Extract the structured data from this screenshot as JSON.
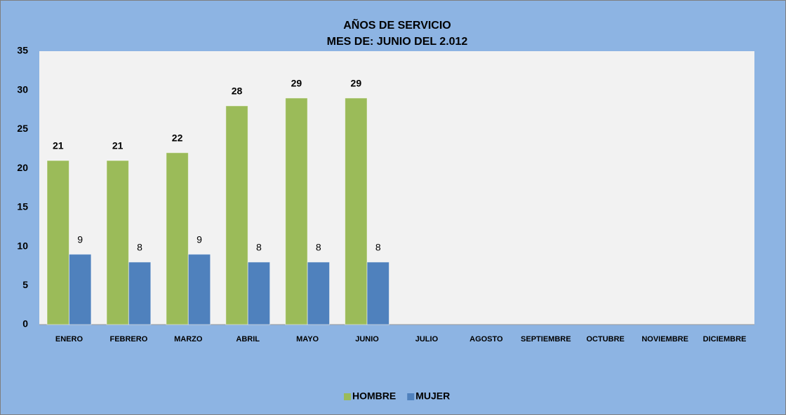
{
  "chart_data": {
    "type": "bar",
    "title": "AÑOS DE SERVICIO",
    "subtitle": "MES DE: JUNIO DEL 2.012",
    "categories": [
      "ENERO",
      "FEBRERO",
      "MARZO",
      "ABRIL",
      "MAYO",
      "JUNIO",
      "JULIO",
      "AGOSTO",
      "SEPTIEMBRE",
      "OCTUBRE",
      "NOVIEMBRE",
      "DICIEMBRE"
    ],
    "series": [
      {
        "name": "HOMBRE",
        "color": "#9bbb59",
        "values": [
          21,
          21,
          22,
          28,
          29,
          29,
          null,
          null,
          null,
          null,
          null,
          null
        ]
      },
      {
        "name": "MUJER",
        "color": "#4f81bd",
        "values": [
          9,
          8,
          9,
          8,
          8,
          8,
          null,
          null,
          null,
          null,
          null,
          null
        ]
      }
    ],
    "ylim": [
      0,
      35
    ],
    "yticks": [
      0,
      5,
      10,
      15,
      20,
      25,
      30,
      35
    ],
    "grid": false,
    "legend": "bottom"
  }
}
